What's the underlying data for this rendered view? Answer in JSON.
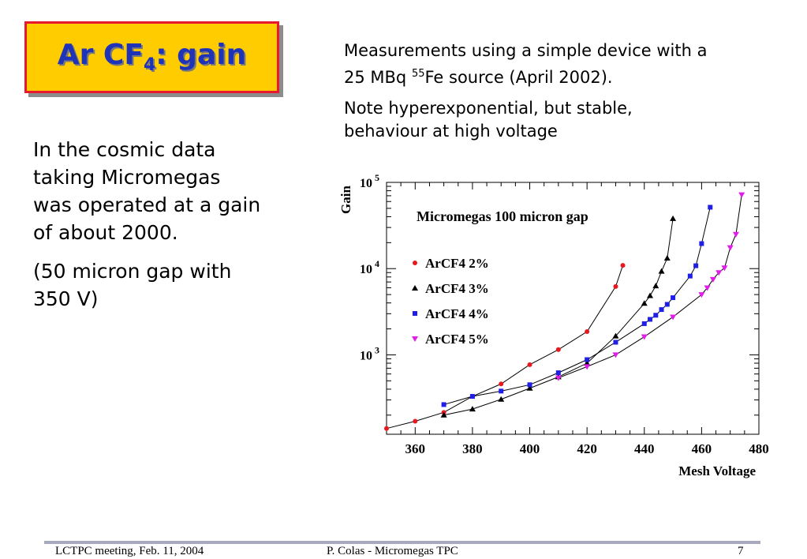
{
  "title": {
    "main": "Ar CF",
    "sub": "4",
    "rest": ": gain"
  },
  "right_text": {
    "p1_line1": "Measurements using a simple device with a",
    "p1_line2_pre": "25 MBq  ",
    "p1_sup": "55",
    "p1_line2_post": "Fe source (April 2002).",
    "p2_line1": "Note hyperexponential, but stable,",
    "p2_line2": "behaviour at high voltage"
  },
  "left_text": {
    "p1": [
      "In the cosmic data",
      "taking  Micromegas",
      "was operated at a gain",
      "of about 2000."
    ],
    "p2": [
      "(50 micron gap with",
      "350 V)"
    ]
  },
  "footer": {
    "left": "LCTPC meeting,  Feb. 11, 2004",
    "center": "P. Colas  -  Micromegas TPC",
    "right": "7"
  },
  "chart_data": {
    "type": "scatter",
    "title": "Micromegas 100 micron gap",
    "xlabel": "Mesh Voltage",
    "ylabel": "Gain",
    "xlim": [
      350,
      480
    ],
    "ylim": [
      120,
      100000
    ],
    "yscale": "log",
    "x_ticks": [
      360,
      380,
      400,
      420,
      440,
      460,
      480
    ],
    "y_tick_labels": [
      {
        "value": 1000,
        "base": "10",
        "exp": "3"
      },
      {
        "value": 10000,
        "base": "10",
        "exp": "4"
      },
      {
        "value": 100000,
        "base": "10",
        "exp": "5"
      }
    ],
    "grid": false,
    "legend_position": "left",
    "series": [
      {
        "name": "ArCF4 2%",
        "marker": "circle",
        "color": "#e8191e",
        "x": [
          350,
          360,
          370,
          380,
          390,
          400,
          410,
          420,
          430,
          432.5
        ],
        "y": [
          140,
          170,
          215,
          330,
          460,
          770,
          1150,
          1860,
          6200,
          10900
        ]
      },
      {
        "name": "ArCF4 3%",
        "marker": "triangle-up",
        "color": "#000000",
        "x": [
          370,
          380,
          390,
          400,
          410,
          420,
          430,
          440,
          442,
          444,
          446,
          448,
          450
        ],
        "y": [
          200,
          235,
          305,
          410,
          555,
          800,
          1650,
          3950,
          4850,
          6300,
          9300,
          13200,
          38000
        ]
      },
      {
        "name": "ArCF4 4%",
        "marker": "square",
        "color": "#1f1fe8",
        "x": [
          370,
          380,
          390,
          400,
          410,
          420,
          430,
          440,
          442,
          444,
          446,
          448,
          450,
          456,
          458,
          460,
          463
        ],
        "y": [
          265,
          330,
          380,
          450,
          620,
          880,
          1400,
          2300,
          2580,
          2880,
          3350,
          3850,
          4600,
          8200,
          10800,
          19500,
          51500
        ]
      },
      {
        "name": "ArCF4 5%",
        "marker": "triangle-down",
        "color": "#e01ee8",
        "x": [
          410,
          420,
          430,
          440,
          450,
          460,
          462,
          464,
          466,
          468,
          470,
          472,
          474
        ],
        "y": [
          540,
          730,
          1000,
          1620,
          2750,
          5000,
          6000,
          7500,
          9000,
          10200,
          17500,
          25000,
          72000
        ]
      }
    ]
  }
}
